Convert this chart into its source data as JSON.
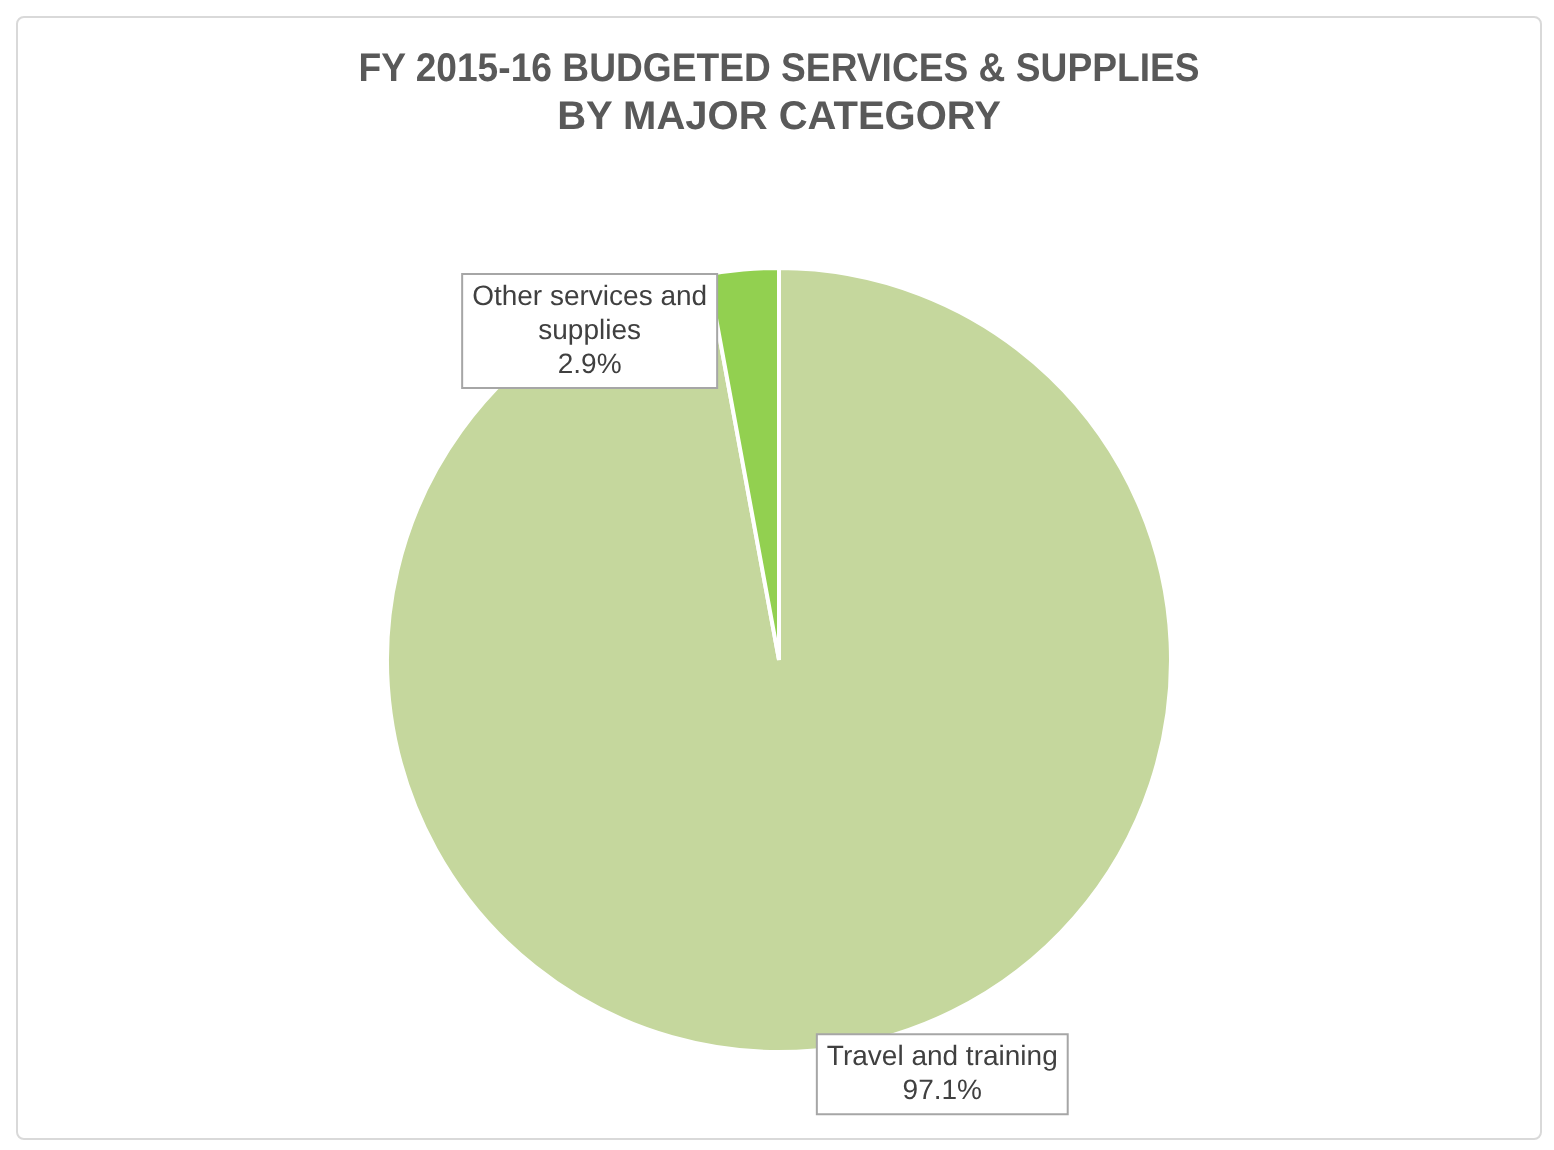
{
  "chart_data": {
    "type": "pie",
    "title": "FY 2015-16 BUDGETED SERVICES & SUPPLIES\nBY MAJOR CATEGORY",
    "categories": [
      "Travel and training",
      "Other services and supplies"
    ],
    "values": [
      97.1,
      2.9
    ],
    "value_labels": [
      "97.1%",
      "2.9%"
    ],
    "colors": [
      "#c5d79d",
      "#92d050"
    ],
    "legend": false
  }
}
